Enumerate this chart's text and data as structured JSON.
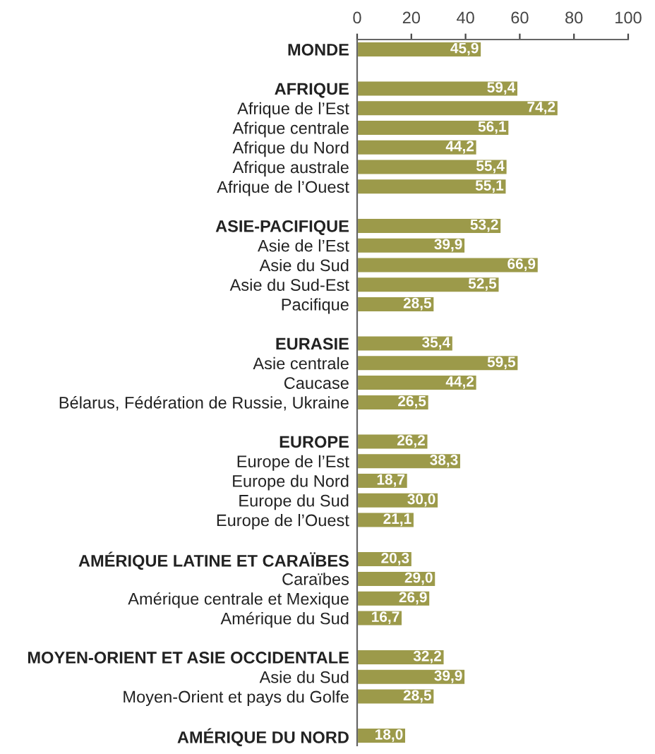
{
  "chart_data": {
    "type": "bar",
    "orientation": "horizontal",
    "color": "#9c9a4a",
    "categories": [
      "MONDE",
      null,
      "AFRIQUE",
      "Afrique de l’Est",
      "Afrique centrale",
      "Afrique du Nord",
      "Afrique australe",
      "Afrique de l’Ouest",
      null,
      "ASIE-PACIFIQUE",
      "Asie de l’Est",
      "Asie du Sud",
      "Asie du Sud-Est",
      "Pacifique",
      null,
      "EURASIE",
      "Asie centrale",
      "Caucase",
      "Bélarus, Fédération de Russie, Ukraine",
      null,
      "EUROPE",
      "Europe de l’Est",
      "Europe du Nord",
      "Europe du Sud",
      "Europe de l’Ouest",
      null,
      "AMÉRIQUE LATINE ET CARAÏBES",
      "Caraïbes",
      "Amérique centrale et Mexique",
      "Amérique du Sud",
      null,
      "MOYEN-ORIENT ET ASIE OCCIDENTALE",
      "Asie du Sud",
      "Moyen-Orient et pays du Golfe",
      null,
      "AMÉRIQUE DU NORD"
    ],
    "values": [
      45.9,
      null,
      59.4,
      74.2,
      56.1,
      44.2,
      55.4,
      55.1,
      null,
      53.2,
      39.9,
      66.9,
      52.5,
      28.5,
      null,
      35.4,
      59.5,
      44.2,
      26.5,
      null,
      26.2,
      38.3,
      18.7,
      30.0,
      21.1,
      null,
      20.3,
      29.0,
      26.9,
      16.7,
      null,
      32.2,
      39.9,
      28.5,
      null,
      18.0
    ],
    "value_labels": [
      "45,9",
      null,
      "59,4",
      "74,2",
      "56,1",
      "44,2",
      "55,4",
      "55,1",
      null,
      "53,2",
      "39,9",
      "66,9",
      "52,5",
      "28,5",
      null,
      "35,4",
      "59,5",
      "44,2",
      "26,5",
      null,
      "26,2",
      "38,3",
      "18,7",
      "30,0",
      "21,1",
      null,
      "20,3",
      "29,0",
      "26,9",
      "16,7",
      null,
      "32,2",
      "39,9",
      "28,5",
      null,
      "18,0"
    ],
    "xlim": [
      0,
      100
    ],
    "xticks": [
      0,
      20,
      40,
      60,
      80,
      100
    ],
    "grid": false,
    "legend": false
  }
}
